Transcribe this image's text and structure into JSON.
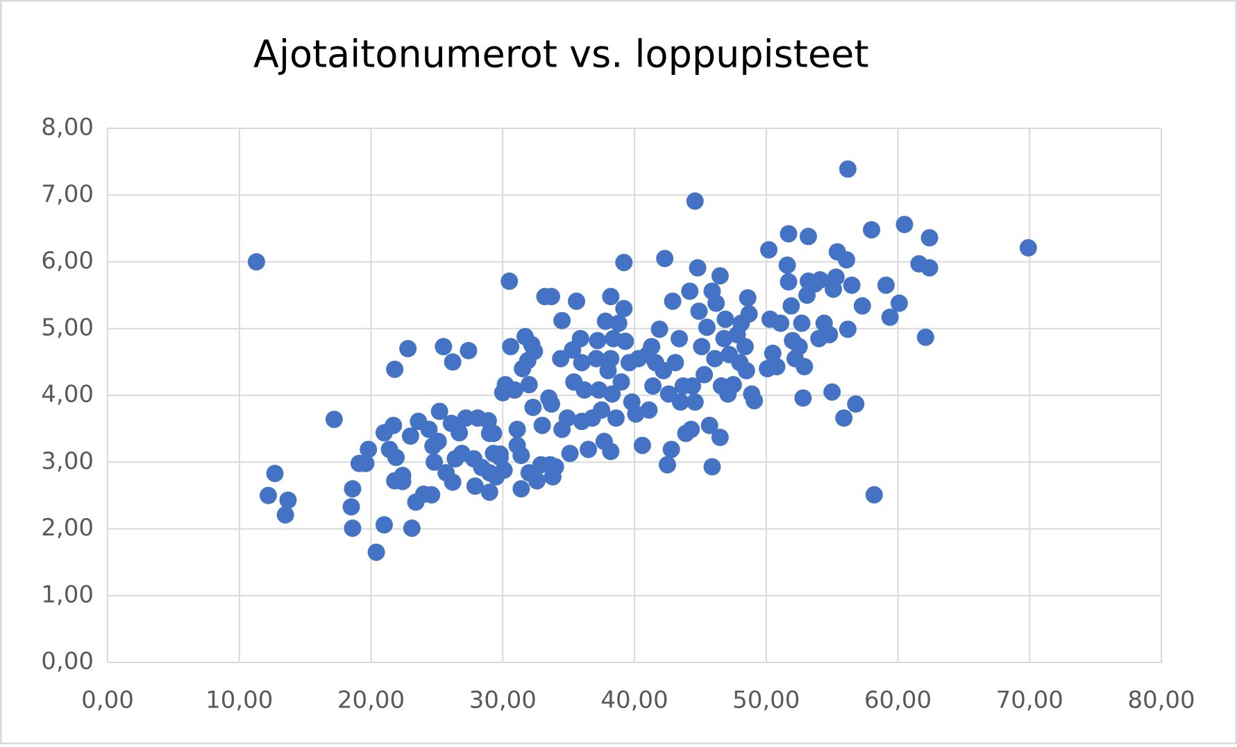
{
  "chart_data": {
    "type": "scatter",
    "title": "Ajotaitonumerot vs. loppupisteet",
    "color": "#4472c4",
    "grid": true,
    "xlim": [
      0,
      80
    ],
    "ylim": [
      0,
      8
    ],
    "xticks": [
      {
        "value": 0,
        "label": "0,00"
      },
      {
        "value": 10,
        "label": "10,00"
      },
      {
        "value": 20,
        "label": "20,00"
      },
      {
        "value": 30,
        "label": "30,00"
      },
      {
        "value": 40,
        "label": "40,00"
      },
      {
        "value": 50,
        "label": "50,00"
      },
      {
        "value": 60,
        "label": "60,00"
      },
      {
        "value": 70,
        "label": "70,00"
      },
      {
        "value": 80,
        "label": "80,00"
      }
    ],
    "yticks": [
      {
        "value": 0,
        "label": "0,00"
      },
      {
        "value": 1,
        "label": "1,00"
      },
      {
        "value": 2,
        "label": "2,00"
      },
      {
        "value": 3,
        "label": "3,00"
      },
      {
        "value": 4,
        "label": "4,00"
      },
      {
        "value": 5,
        "label": "5,00"
      },
      {
        "value": 6,
        "label": "6,00"
      },
      {
        "value": 7,
        "label": "7,00"
      },
      {
        "value": 8,
        "label": "8,00"
      }
    ],
    "x": [
      11.3,
      12.7,
      12.2,
      13.7,
      13.5,
      17.2,
      18.6,
      18.5,
      18.6,
      20.4,
      21.0,
      23.1,
      21.8,
      22.8,
      25.5,
      26.2,
      27.4,
      19.1,
      19.8,
      19.6,
      21.0,
      21.7,
      21.4,
      21.9,
      21.8,
      22.4,
      22.4,
      23.0,
      23.4,
      24.0,
      24.6,
      23.6,
      24.4,
      24.7,
      24.8,
      25.1,
      25.2,
      25.7,
      26.2,
      26.1,
      26.7,
      26.4,
      26.9,
      27.2,
      27.8,
      27.9,
      28.1,
      28.4,
      28.9,
      29.0,
      29.0,
      29.0,
      29.3,
      29.5,
      29.8,
      30.1,
      29.8,
      29.3,
      30.5,
      30.6,
      30.2,
      30.0,
      30.9,
      31.1,
      31.1,
      31.4,
      31.4,
      31.5,
      31.7,
      31.9,
      32.0,
      32.2,
      32.4,
      32.3,
      32.0,
      32.6,
      32.9,
      33.0,
      33.2,
      33.7,
      33.5,
      33.6,
      33.8,
      34.0,
      33.7,
      34.4,
      34.5,
      34.5,
      34.9,
      35.1,
      35.3,
      35.4,
      35.6,
      35.9,
      36.0,
      36.0,
      36.2,
      36.5,
      36.8,
      37.1,
      37.2,
      37.3,
      37.5,
      37.7,
      37.8,
      38.0,
      38.2,
      38.2,
      38.2,
      38.3,
      38.4,
      38.6,
      38.8,
      39.0,
      39.2,
      39.2,
      39.3,
      39.6,
      39.8,
      40.1,
      40.3,
      40.6,
      41.0,
      41.1,
      41.3,
      41.4,
      41.6,
      41.9,
      42.2,
      42.3,
      42.5,
      42.6,
      42.8,
      42.9,
      43.1,
      43.4,
      43.5,
      43.7,
      43.9,
      44.2,
      44.3,
      44.4,
      44.6,
      44.6,
      44.8,
      44.9,
      45.1,
      45.3,
      45.5,
      45.7,
      45.9,
      45.9,
      46.1,
      46.2,
      46.5,
      46.5,
      46.6,
      46.8,
      46.9,
      47.1,
      47.2,
      47.5,
      47.8,
      48.0,
      48.1,
      48.4,
      48.5,
      48.6,
      48.7,
      48.9,
      49.1,
      50.2,
      50.1,
      50.3,
      50.5,
      50.8,
      51.1,
      51.6,
      51.7,
      51.7,
      51.9,
      52.0,
      52.2,
      52.5,
      52.7,
      52.8,
      52.9,
      53.1,
      53.2,
      53.2,
      53.7,
      54.1,
      54.0,
      54.4,
      54.8,
      55.0,
      55.1,
      55.3,
      55.4,
      56.1,
      56.2,
      55.9,
      56.2,
      56.5,
      56.8,
      57.3,
      58.0,
      58.2,
      59.1,
      59.4,
      60.1,
      60.5,
      61.6,
      62.1,
      62.4,
      62.4,
      69.9
    ],
    "values": [
      6.0,
      2.83,
      2.5,
      2.43,
      2.21,
      3.64,
      2.6,
      2.33,
      2.01,
      1.65,
      2.06,
      2.01,
      4.39,
      4.7,
      4.73,
      4.5,
      4.67,
      2.98,
      3.19,
      2.98,
      3.44,
      3.55,
      3.19,
      3.07,
      2.72,
      2.8,
      2.71,
      3.39,
      2.4,
      2.52,
      2.51,
      3.61,
      3.49,
      3.24,
      3.0,
      3.31,
      3.76,
      2.84,
      2.7,
      3.58,
      3.44,
      3.05,
      3.13,
      3.66,
      3.05,
      2.64,
      3.66,
      2.92,
      3.62,
      3.43,
      2.84,
      2.55,
      3.13,
      2.78,
      3.07,
      2.88,
      3.12,
      3.43,
      5.71,
      4.73,
      4.16,
      4.04,
      4.08,
      3.49,
      3.25,
      3.1,
      2.6,
      4.4,
      4.88,
      4.52,
      4.16,
      4.76,
      4.66,
      3.82,
      2.84,
      2.72,
      2.96,
      3.55,
      5.48,
      5.48,
      3.96,
      2.96,
      2.78,
      2.93,
      3.87,
      4.55,
      5.12,
      3.49,
      3.66,
      3.13,
      4.68,
      4.2,
      5.41,
      4.85,
      4.49,
      3.61,
      4.08,
      3.19,
      3.66,
      4.55,
      4.82,
      4.08,
      3.78,
      3.31,
      5.11,
      4.37,
      4.55,
      5.48,
      3.16,
      4.02,
      4.85,
      3.66,
      5.08,
      4.2,
      5.3,
      5.99,
      4.81,
      4.49,
      3.9,
      3.72,
      4.55,
      3.25,
      4.61,
      3.78,
      4.73,
      4.14,
      4.49,
      4.99,
      4.37,
      6.05,
      2.96,
      4.02,
      3.19,
      5.41,
      4.49,
      4.85,
      3.9,
      4.14,
      3.43,
      5.56,
      3.49,
      4.14,
      3.9,
      6.91,
      5.91,
      5.26,
      4.73,
      4.31,
      5.02,
      3.55,
      2.93,
      5.56,
      4.55,
      5.38,
      3.37,
      5.79,
      4.14,
      4.85,
      5.14,
      4.02,
      4.61,
      4.16,
      4.91,
      4.49,
      5.08,
      4.73,
      4.37,
      5.46,
      5.22,
      4.02,
      3.92,
      6.18,
      4.4,
      5.14,
      4.63,
      4.43,
      5.08,
      5.95,
      6.42,
      5.7,
      5.34,
      4.82,
      4.55,
      4.73,
      5.08,
      3.96,
      4.43,
      5.5,
      6.38,
      5.71,
      5.67,
      5.73,
      4.85,
      5.08,
      4.91,
      4.05,
      5.59,
      5.77,
      6.15,
      6.03,
      4.99,
      3.66,
      7.39,
      5.65,
      3.87,
      5.34,
      6.48,
      2.51,
      5.65,
      5.17,
      5.38,
      6.56,
      5.97,
      4.87,
      5.91,
      6.36,
      6.21
    ]
  }
}
